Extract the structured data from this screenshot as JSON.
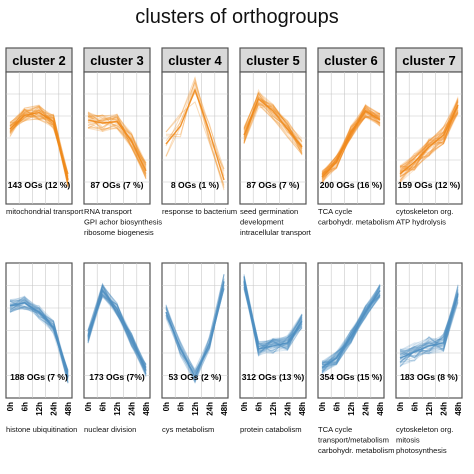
{
  "title": "clusters of orthogroups",
  "chart_data": {
    "type": "line",
    "x": [
      "0h",
      "6h",
      "12h",
      "24h",
      "48h"
    ],
    "colors": {
      "top": "#f08a1c",
      "bottom": "#4f8fc1"
    },
    "columns": [
      {
        "header": "cluster 2"
      },
      {
        "header": "cluster 3"
      },
      {
        "header": "cluster 4"
      },
      {
        "header": "cluster 5"
      },
      {
        "header": "cluster 6"
      },
      {
        "header": "cluster 7"
      }
    ],
    "rows": [
      {
        "series_color": "#f08a1c",
        "panels": [
          {
            "count": "143 OGs (12 %)",
            "functions": [
              "mitochondrial transport"
            ],
            "profile": [
              0.3,
              0.75,
              0.85,
              0.55,
              -1.4
            ],
            "lines": 40,
            "opacity": 0.25,
            "spread": 0.25
          },
          {
            "count": "87 OGs (7 %)",
            "functions": [
              "RNA transport",
              "GPI achor biosynthesis",
              "ribosome biogenesis"
            ],
            "profile": [
              0.6,
              0.5,
              0.55,
              -0.1,
              -1.1
            ],
            "lines": 30,
            "opacity": 0.25,
            "spread": 0.28
          },
          {
            "count": "8 OGs (1 %)",
            "functions": [
              "response to bacterium"
            ],
            "profile": [
              -0.2,
              0.4,
              1.6,
              0.2,
              -1.4
            ],
            "lines": 8,
            "opacity": 0.3,
            "spread": 0.45
          },
          {
            "count": "87 OGs (7 %)",
            "functions": [
              "seed germination",
              "development",
              "intracellular transport"
            ],
            "profile": [
              0.1,
              1.3,
              0.9,
              0.3,
              -0.3
            ],
            "lines": 30,
            "opacity": 0.25,
            "spread": 0.3
          },
          {
            "count": "200 OGs (16 %)",
            "functions": [
              "TCA cycle",
              "carbohydr. metabolism"
            ],
            "profile": [
              -1.3,
              -0.8,
              0.2,
              0.9,
              0.6
            ],
            "lines": 50,
            "opacity": 0.22,
            "spread": 0.22
          },
          {
            "count": "159 OGs (12 %)",
            "functions": [
              "cytoskeleton org.",
              "ATP hydrolysis"
            ],
            "profile": [
              -1.2,
              -0.8,
              -0.3,
              0.1,
              1.1
            ],
            "lines": 45,
            "opacity": 0.22,
            "spread": 0.3
          }
        ]
      },
      {
        "series_color": "#4f8fc1",
        "panels": [
          {
            "count": "188 OGs (7 %)",
            "functions": [
              "histone ubiquitination"
            ],
            "profile": [
              0.8,
              0.9,
              0.6,
              0.1,
              -1.5
            ],
            "lines": 45,
            "opacity": 0.22,
            "spread": 0.22
          },
          {
            "count": "173 OGs (7%)",
            "functions": [
              "nuclear division"
            ],
            "profile": [
              -0.2,
              1.3,
              0.7,
              -0.3,
              -1.3
            ],
            "lines": 45,
            "opacity": 0.22,
            "spread": 0.22
          },
          {
            "count": "53 OGs (2 %)",
            "functions": [
              "cys metabolism"
            ],
            "profile": [
              0.6,
              -0.6,
              -1.5,
              -0.4,
              1.6
            ],
            "lines": 20,
            "opacity": 0.3,
            "spread": 0.25
          },
          {
            "count": "312 OGs (13 %)",
            "functions": [
              "protein catabolism"
            ],
            "profile": [
              1.6,
              -0.6,
              -0.5,
              -0.4,
              0.3
            ],
            "lines": 60,
            "opacity": 0.2,
            "spread": 0.25
          },
          {
            "count": "354 OGs (15 %)",
            "functions": [
              "TCA cycle",
              "transport/metabolism",
              "carbohydr. metabolism"
            ],
            "profile": [
              -1.2,
              -0.9,
              -0.2,
              0.6,
              1.3
            ],
            "lines": 60,
            "opacity": 0.2,
            "spread": 0.22
          },
          {
            "count": "183 OGs (8 %)",
            "functions": [
              "cytoskeleton org.",
              "mitosis",
              "photosynthesis"
            ],
            "profile": [
              -0.9,
              -0.7,
              -0.5,
              -0.4,
              1.2
            ],
            "lines": 45,
            "opacity": 0.22,
            "spread": 0.3
          }
        ]
      }
    ]
  }
}
